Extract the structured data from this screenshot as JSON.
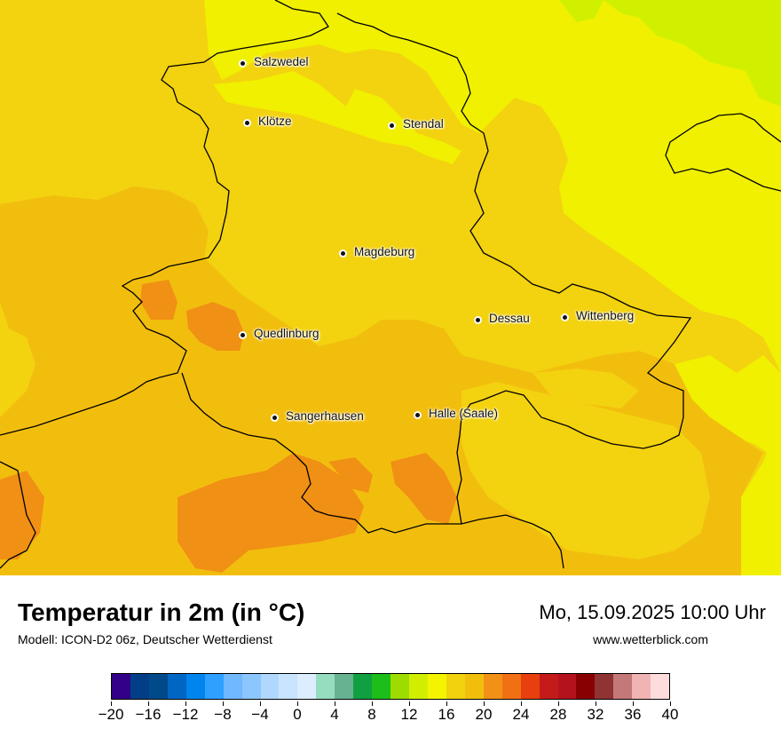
{
  "map": {
    "cities": [
      {
        "name": "Salzwedel"
      },
      {
        "name": "Klötze"
      },
      {
        "name": "Stendal"
      },
      {
        "name": "Magdeburg"
      },
      {
        "name": "Dessau"
      },
      {
        "name": "Wittenberg"
      },
      {
        "name": "Quedlinburg"
      },
      {
        "name": "Sangerhausen"
      },
      {
        "name": "Halle (Saale)"
      }
    ],
    "colors": {
      "t16_18": "#f0f000",
      "t18_20": "#f3d20f",
      "t20_22": "#f2be0e",
      "t22_24": "#f09014",
      "t14_16": "#d0f000",
      "border": "#000000"
    }
  },
  "footer": {
    "title": "Temperatur in 2m (in °C)",
    "model": "Modell: ICON-D2 06z, Deutscher Wetterdienst",
    "datetime": "Mo, 15.09.2025 10:00 Uhr",
    "website": "www.wetterblick.com"
  },
  "colorbar": {
    "min": -20,
    "max": 40,
    "step": 2,
    "tick_labels": [
      "−20",
      "−16",
      "−12",
      "−8",
      "−4",
      "0",
      "4",
      "8",
      "12",
      "16",
      "20",
      "24",
      "28",
      "32",
      "36",
      "40"
    ],
    "colors": [
      "#330088",
      "#003f88",
      "#004a8a",
      "#0066c4",
      "#0085ee",
      "#2ea0ff",
      "#70b8ff",
      "#8cc6ff",
      "#b0d8ff",
      "#c8e4ff",
      "#dcedff",
      "#96dcbe",
      "#66b291",
      "#11a041",
      "#1dbd1a",
      "#9edc00",
      "#d2ee00",
      "#f4f400",
      "#f1d20f",
      "#f1be0b",
      "#f19116",
      "#f17014",
      "#e83f0e",
      "#c41a1a",
      "#b4121d",
      "#880000",
      "#8f3333",
      "#c47878",
      "#f0b4b4",
      "#ffdcdc"
    ]
  }
}
